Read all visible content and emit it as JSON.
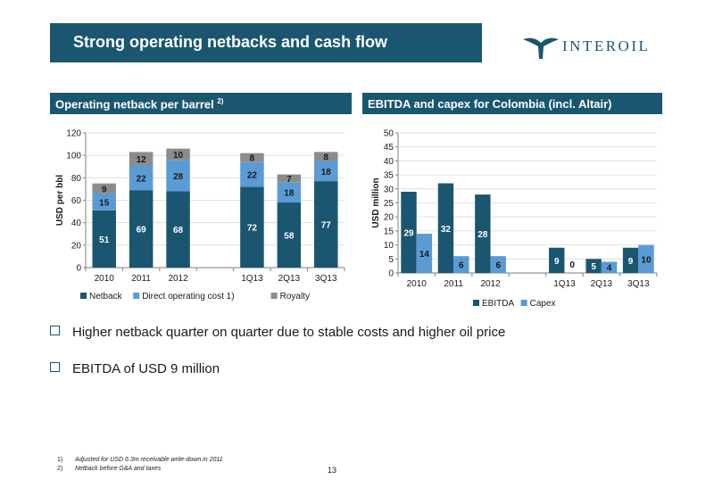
{
  "slide": {
    "title": "Strong operating netbacks and cash flow",
    "logo_text": "INTEROIL",
    "page_number": "13",
    "bullets": [
      "Higher netback quarter on quarter due to stable costs and higher oil price",
      "EBITDA of USD 9 million"
    ],
    "footnotes": [
      {
        "num": "1)",
        "text": "Adjusted for USD 6.3m receivable write-down in 2011"
      },
      {
        "num": "2)",
        "text": "Netback before G&A and taxes"
      }
    ],
    "colors": {
      "primary": "#1a5670",
      "light": "#5b9bd5",
      "gray": "#8c8c8c"
    }
  },
  "left_panel": {
    "title": "Operating netback per barrel",
    "title_sup": "2)"
  },
  "right_panel": {
    "title": "EBITDA and capex for Colombia (incl. Altair)"
  },
  "chart_data": [
    {
      "type": "bar",
      "stacked": true,
      "ylabel": "USD per bbl",
      "ylim": [
        0,
        120
      ],
      "yticks": [
        0,
        20,
        40,
        60,
        80,
        100,
        120
      ],
      "categories": [
        "2010",
        "2011",
        "2012",
        "",
        "1Q13",
        "2Q13",
        "3Q13"
      ],
      "series": [
        {
          "name": "Netback",
          "color": "#1a5670",
          "label_color": "#ffffff",
          "values": [
            51,
            69,
            68,
            null,
            72,
            58,
            77
          ]
        },
        {
          "name": "Direct operating cost 1)",
          "color": "#5b9bd5",
          "label_color": "#1a1a1a",
          "values": [
            15,
            22,
            28,
            null,
            22,
            18,
            18
          ]
        },
        {
          "name": "Royalty",
          "color": "#8c8c8c",
          "label_color": "#1a1a1a",
          "values": [
            9,
            12,
            10,
            null,
            8,
            7,
            8
          ]
        }
      ],
      "legend": "bottom"
    },
    {
      "type": "bar",
      "stacked": false,
      "ylabel": "USD million",
      "ylim": [
        0,
        50
      ],
      "yticks": [
        0,
        5,
        10,
        15,
        20,
        25,
        30,
        35,
        40,
        45,
        50
      ],
      "categories": [
        "2010",
        "2011",
        "2012",
        "",
        "1Q13",
        "2Q13",
        "3Q13"
      ],
      "series": [
        {
          "name": "EBITDA",
          "color": "#1a5670",
          "label_color": "#ffffff",
          "values": [
            29,
            32,
            28,
            null,
            9,
            5,
            9
          ]
        },
        {
          "name": "Capex",
          "color": "#5b9bd5",
          "label_color": "#1a1a1a",
          "values": [
            14,
            6,
            6,
            null,
            0,
            4,
            10
          ]
        }
      ],
      "legend": "bottom"
    }
  ]
}
